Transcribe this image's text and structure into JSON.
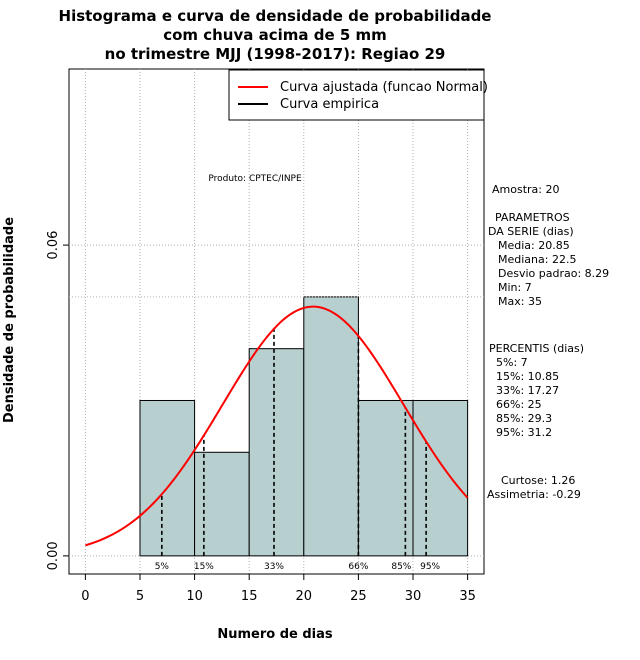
{
  "chart_data": {
    "type": "histogram",
    "title": [
      "Histograma e curva de densidade de probabilidade",
      "com chuva acima de 5 mm",
      "no trimestre MJJ (1998-2017): Regiao 29"
    ],
    "xlabel": "Numero de dias",
    "ylabel": "Densidade de probabilidade",
    "xlim": [
      -1.5,
      36.5
    ],
    "ylim": [
      -0.0035,
      0.094
    ],
    "x_ticks": [
      0,
      5,
      10,
      15,
      20,
      25,
      30,
      35
    ],
    "x_tick_labels": [
      "0",
      "5",
      "10",
      "15",
      "20",
      "25",
      "30",
      "35"
    ],
    "y_ticks": [
      0.0,
      0.06
    ],
    "y_tick_labels": [
      "0.00",
      "0.06"
    ],
    "x_gridlines": [
      0,
      5,
      10,
      15,
      20,
      25,
      30,
      35
    ],
    "bins": [
      {
        "start": 5,
        "end": 10,
        "density": 0.03
      },
      {
        "start": 10,
        "end": 15,
        "density": 0.02
      },
      {
        "start": 15,
        "end": 20,
        "density": 0.04
      },
      {
        "start": 20,
        "end": 25,
        "density": 0.05
      },
      {
        "start": 25,
        "end": 30,
        "density": 0.03
      },
      {
        "start": 30,
        "end": 35,
        "density": 0.03
      }
    ],
    "reference_line_y": 0.05,
    "normal_fit": {
      "mean": 20.85,
      "sd": 8.29,
      "x_from": 0,
      "x_to": 35
    },
    "percentiles": [
      {
        "label": "5%",
        "x": 7
      },
      {
        "label": "15%",
        "x": 10.85
      },
      {
        "label": "33%",
        "x": 17.27
      },
      {
        "label": "66%",
        "x": 25
      },
      {
        "label": "85%",
        "x": 29.3
      },
      {
        "label": "95%",
        "x": 31.2
      }
    ],
    "legend": {
      "position": "top-right",
      "entries": [
        {
          "label": "Curva ajustada (funcao Normal)",
          "color": "#ff0000"
        },
        {
          "label": "Curva empirica",
          "color": "#000000"
        }
      ]
    },
    "annotation": "Produto: CPTEC/INPE",
    "colors": {
      "bar_fill": "#b7cfcf",
      "curve": "#ff0000",
      "grid": "#b0b0b0"
    }
  },
  "side_panel": {
    "sample": "Amostra: 20",
    "params_heading_1": "PARAMETROS",
    "params_heading_2": "DA SERIE (dias)",
    "params": [
      "Media: 20.85",
      "Mediana: 22.5",
      "Desvio padrao: 8.29",
      "Min: 7",
      "Max: 35"
    ],
    "percentis_heading": "PERCENTIS (dias)",
    "percentis": [
      "5%: 7",
      "15%: 10.85",
      "33%: 17.27",
      "66%: 25",
      "85%: 29.3",
      "95%: 31.2"
    ],
    "curtose": "Curtose: 1.26",
    "assimetria": "Assimetria: -0.29"
  }
}
